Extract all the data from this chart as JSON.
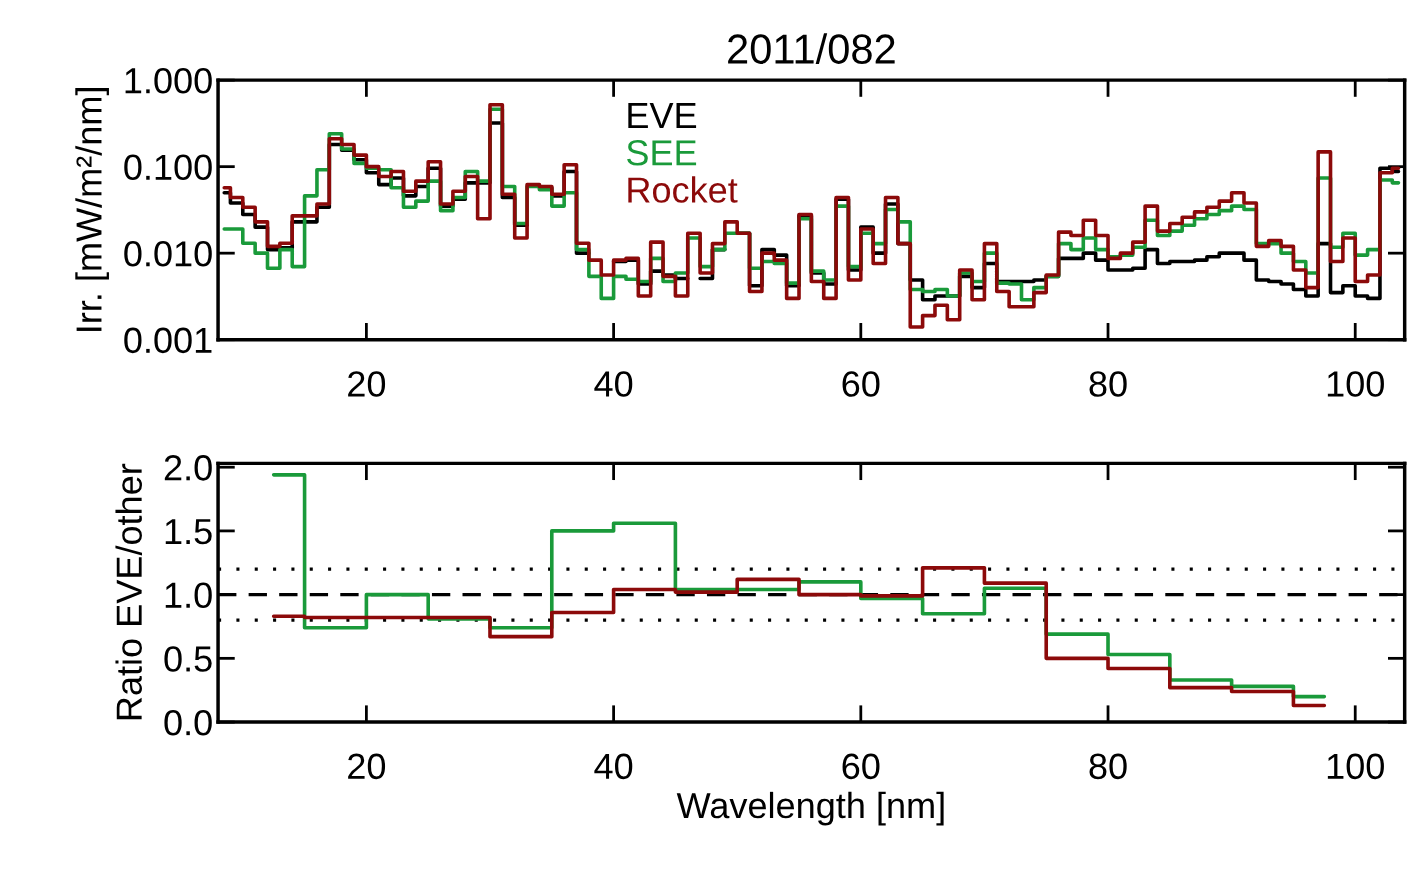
{
  "chart_data": [
    {
      "type": "step",
      "title": "2011/082",
      "ylabel": "Irr. [mW/m²/nm]",
      "log": "y",
      "legend": "top",
      "xlim": [
        8,
        104
      ],
      "xticks": [
        20,
        40,
        60,
        80,
        100
      ],
      "ylim": [
        0.001,
        1
      ],
      "yticks": [
        {
          "value": 1,
          "label": "1.000"
        },
        {
          "value": 0.1,
          "label": "0.100"
        },
        {
          "value": 0.01,
          "label": "0.010"
        },
        {
          "value": 0.001,
          "label": "0.001"
        }
      ],
      "x": [
        8.5,
        9.5,
        10.5,
        11.5,
        12.5,
        13.5,
        14.5,
        15.5,
        16.5,
        17.5,
        18.5,
        19.5,
        20.5,
        21.5,
        22.5,
        23.5,
        24.5,
        25.5,
        26.5,
        27.5,
        28.5,
        29.5,
        30.5,
        31.5,
        32.5,
        33.5,
        34.5,
        35.5,
        36.5,
        37.5,
        38.5,
        39.5,
        40.5,
        41.5,
        42.5,
        43.5,
        44.5,
        45.5,
        46.5,
        47.5,
        48.5,
        49.5,
        50.5,
        51.5,
        52.5,
        53.5,
        54.5,
        55.5,
        56.5,
        57.5,
        58.5,
        59.5,
        60.5,
        61.5,
        62.5,
        63.5,
        64.5,
        65.5,
        66.5,
        67.5,
        68.5,
        69.5,
        70.5,
        71.5,
        72.5,
        73.5,
        74.5,
        75.5,
        76.5,
        77.5,
        78.5,
        79.5,
        80.5,
        81.5,
        82.5,
        83.5,
        84.5,
        85.5,
        86.5,
        87.5,
        88.5,
        89.5,
        90.5,
        91.5,
        92.5,
        93.5,
        94.5,
        95.5,
        96.5,
        97.5,
        98.5,
        99.5,
        100.5,
        101.5,
        102.5,
        103.5
      ],
      "series": [
        {
          "name": "EVE",
          "color": "#000000",
          "values": [
            0.05,
            0.038,
            0.028,
            0.02,
            0.011,
            0.0115,
            0.023,
            0.023,
            0.034,
            0.18,
            0.155,
            0.12,
            0.085,
            0.062,
            0.074,
            0.046,
            0.059,
            0.096,
            0.035,
            0.042,
            0.065,
            0.065,
            0.32,
            0.044,
            0.021,
            null,
            0.057,
            0.046,
            0.088,
            0.01,
            null,
            null,
            0.008,
            0.0083,
            0.0044,
            0.0062,
            0.0056,
            0.0051,
            null,
            0.0051,
            0.011,
            null,
            0.017,
            0.0042,
            0.011,
            0.0095,
            0.0042,
            0.027,
            0.0059,
            0.0044,
            0.042,
            0.0064,
            0.02,
            0.01,
            0.037,
            0.0129,
            0.0049,
            0.0029,
            0.0032,
            0.0032,
            0.0054,
            0.004,
            0.0076,
            0.0047,
            0.0047,
            0.0047,
            0.0049,
            0.0054,
            0.0087,
            0.0087,
            0.01,
            0.0083,
            0.0064,
            0.0064,
            0.0067,
            0.011,
            0.0076,
            0.008,
            0.008,
            0.0083,
            0.0091,
            0.01,
            0.01,
            0.0083,
            0.0049,
            0.0047,
            0.0044,
            0.0038,
            0.0032,
            0.0129,
            0.0035,
            0.0042,
            0.0032,
            0.003,
            0.096,
            0.088
          ]
        },
        {
          "name": "SEE",
          "color": "#1a9a3a",
          "values": [
            0.019,
            0.019,
            0.013,
            0.01,
            0.0067,
            0.011,
            0.007,
            0.046,
            0.092,
            0.24,
            0.16,
            0.109,
            0.096,
            0.092,
            0.057,
            0.034,
            0.04,
            0.068,
            0.031,
            0.044,
            0.088,
            0.068,
            0.46,
            0.059,
            0.022,
            0.059,
            0.054,
            0.035,
            0.05,
            0.011,
            0.0054,
            0.003,
            0.0054,
            0.005,
            0.0047,
            0.0087,
            0.0047,
            0.0059,
            0.015,
            0.007,
            0.011,
            0.017,
            0.017,
            0.0067,
            0.008,
            0.0076,
            0.0045,
            0.025,
            0.0062,
            0.0049,
            0.035,
            0.007,
            0.017,
            0.0129,
            0.032,
            0.023,
            0.0038,
            0.0036,
            0.0038,
            0.0032,
            0.0059,
            0.0047,
            0.01,
            0.0045,
            0.0044,
            0.0029,
            0.004,
            0.0054,
            0.0129,
            0.011,
            0.015,
            0.011,
            0.0091,
            0.0095,
            0.0117,
            0.024,
            0.016,
            0.018,
            0.021,
            0.025,
            0.028,
            0.031,
            0.035,
            0.032,
            0.0129,
            0.0129,
            0.01,
            0.008,
            0.0059,
            0.074,
            0.0117,
            0.017,
            0.0095,
            0.011,
            0.07,
            0.065
          ]
        },
        {
          "name": "Rocket",
          "color": "#8c0a0a",
          "values": [
            0.057,
            0.044,
            0.034,
            0.023,
            0.012,
            0.013,
            0.027,
            0.027,
            0.037,
            0.21,
            0.18,
            0.136,
            0.1,
            0.077,
            0.088,
            0.052,
            0.068,
            0.114,
            0.037,
            0.052,
            0.077,
            0.025,
            0.52,
            0.048,
            0.015,
            0.062,
            0.059,
            0.048,
            0.105,
            0.013,
            0.0083,
            0.0056,
            0.0083,
            0.0087,
            0.0032,
            0.0134,
            0.0054,
            0.0032,
            0.017,
            0.0059,
            0.0129,
            0.023,
            0.017,
            0.0036,
            0.01,
            0.0083,
            0.003,
            0.028,
            0.0047,
            0.003,
            0.044,
            0.0049,
            0.019,
            0.0076,
            0.044,
            0.0129,
            0.0014,
            0.0019,
            0.0025,
            0.0017,
            0.0064,
            0.0029,
            0.0129,
            0.0036,
            0.0024,
            0.0024,
            0.0035,
            0.0056,
            0.0175,
            0.016,
            0.024,
            0.016,
            0.0087,
            0.01,
            0.0134,
            0.035,
            0.018,
            0.022,
            0.026,
            0.03,
            0.034,
            0.04,
            0.05,
            0.038,
            0.012,
            0.014,
            0.012,
            0.0064,
            0.004,
            0.148,
            0.008,
            0.015,
            0.0047,
            0.0056,
            0.085,
            0.096
          ]
        }
      ]
    },
    {
      "type": "step",
      "xlabel": "Wavelength [nm]",
      "ylabel": "Ratio EVE/other",
      "xlim": [
        8,
        104
      ],
      "xticks": [
        20,
        40,
        60,
        80,
        100
      ],
      "ylim": [
        0,
        2.03
      ],
      "yticks": [
        {
          "value": 0,
          "label": "0.0"
        },
        {
          "value": 0.5,
          "label": "0.5"
        },
        {
          "value": 1,
          "label": "1.0"
        },
        {
          "value": 1.5,
          "label": "1.5"
        },
        {
          "value": 2,
          "label": "2.0"
        }
      ],
      "x": [
        12.5,
        17.5,
        22.5,
        27.5,
        32.5,
        37.5,
        42.5,
        47.5,
        52.5,
        57.5,
        62.5,
        67.5,
        72.5,
        77.5,
        82.5,
        87.5,
        92.5,
        97.5
      ],
      "ref_lines": [
        {
          "axis": "y",
          "value": 1.0,
          "color": "#000000",
          "line_style": "dashed"
        },
        {
          "axis": "y",
          "value": 1.2,
          "color": "#000000",
          "line_style": "dotted"
        },
        {
          "axis": "y",
          "value": 0.8,
          "color": "#000000",
          "line_style": "dotted"
        }
      ],
      "series": [
        {
          "color": "#1a9a3a",
          "values": [
            1.94,
            0.74,
            1.0,
            0.81,
            0.74,
            1.5,
            1.56,
            1.04,
            1.04,
            1.1,
            0.97,
            0.85,
            1.05,
            0.69,
            0.53,
            0.33,
            0.28,
            0.2
          ]
        },
        {
          "color": "#8c0a0a",
          "values": [
            0.83,
            0.82,
            0.82,
            0.82,
            0.67,
            0.86,
            1.04,
            1.02,
            1.12,
            1.0,
            0.99,
            1.21,
            1.09,
            0.5,
            0.42,
            0.27,
            0.24,
            0.13
          ]
        }
      ]
    }
  ]
}
